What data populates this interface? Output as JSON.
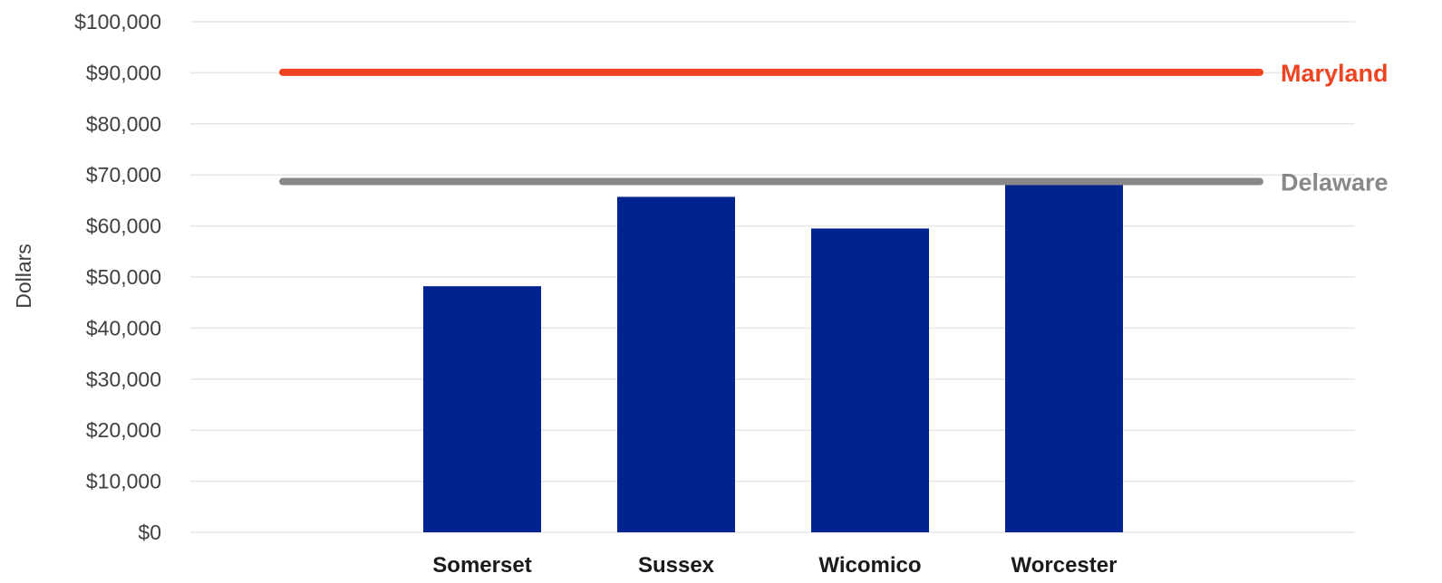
{
  "chart_data": {
    "type": "bar",
    "title": "",
    "xlabel": "",
    "ylabel": "Dollars",
    "ylim": [
      0,
      100000
    ],
    "y_tick_values": [
      0,
      10000,
      20000,
      30000,
      40000,
      50000,
      60000,
      70000,
      80000,
      90000,
      100000
    ],
    "y_tick_labels": [
      "$0",
      "$10,000",
      "$20,000",
      "$30,000",
      "$40,000",
      "$50,000",
      "$60,000",
      "$70,000",
      "$80,000",
      "$90,000",
      "$100,000"
    ],
    "categories": [
      "Somerset",
      "Sussex",
      "Wicomico",
      "Worcester"
    ],
    "values": [
      48200,
      65700,
      59500,
      68200
    ],
    "grid": true,
    "bar_color": "#00238f",
    "grid_color": "#e6e6e6",
    "reference_lines": [
      {
        "name": "Maryland",
        "value": 90100,
        "color": "#ee4422"
      },
      {
        "name": "Delaware",
        "value": 68700,
        "color": "#888888"
      }
    ]
  }
}
